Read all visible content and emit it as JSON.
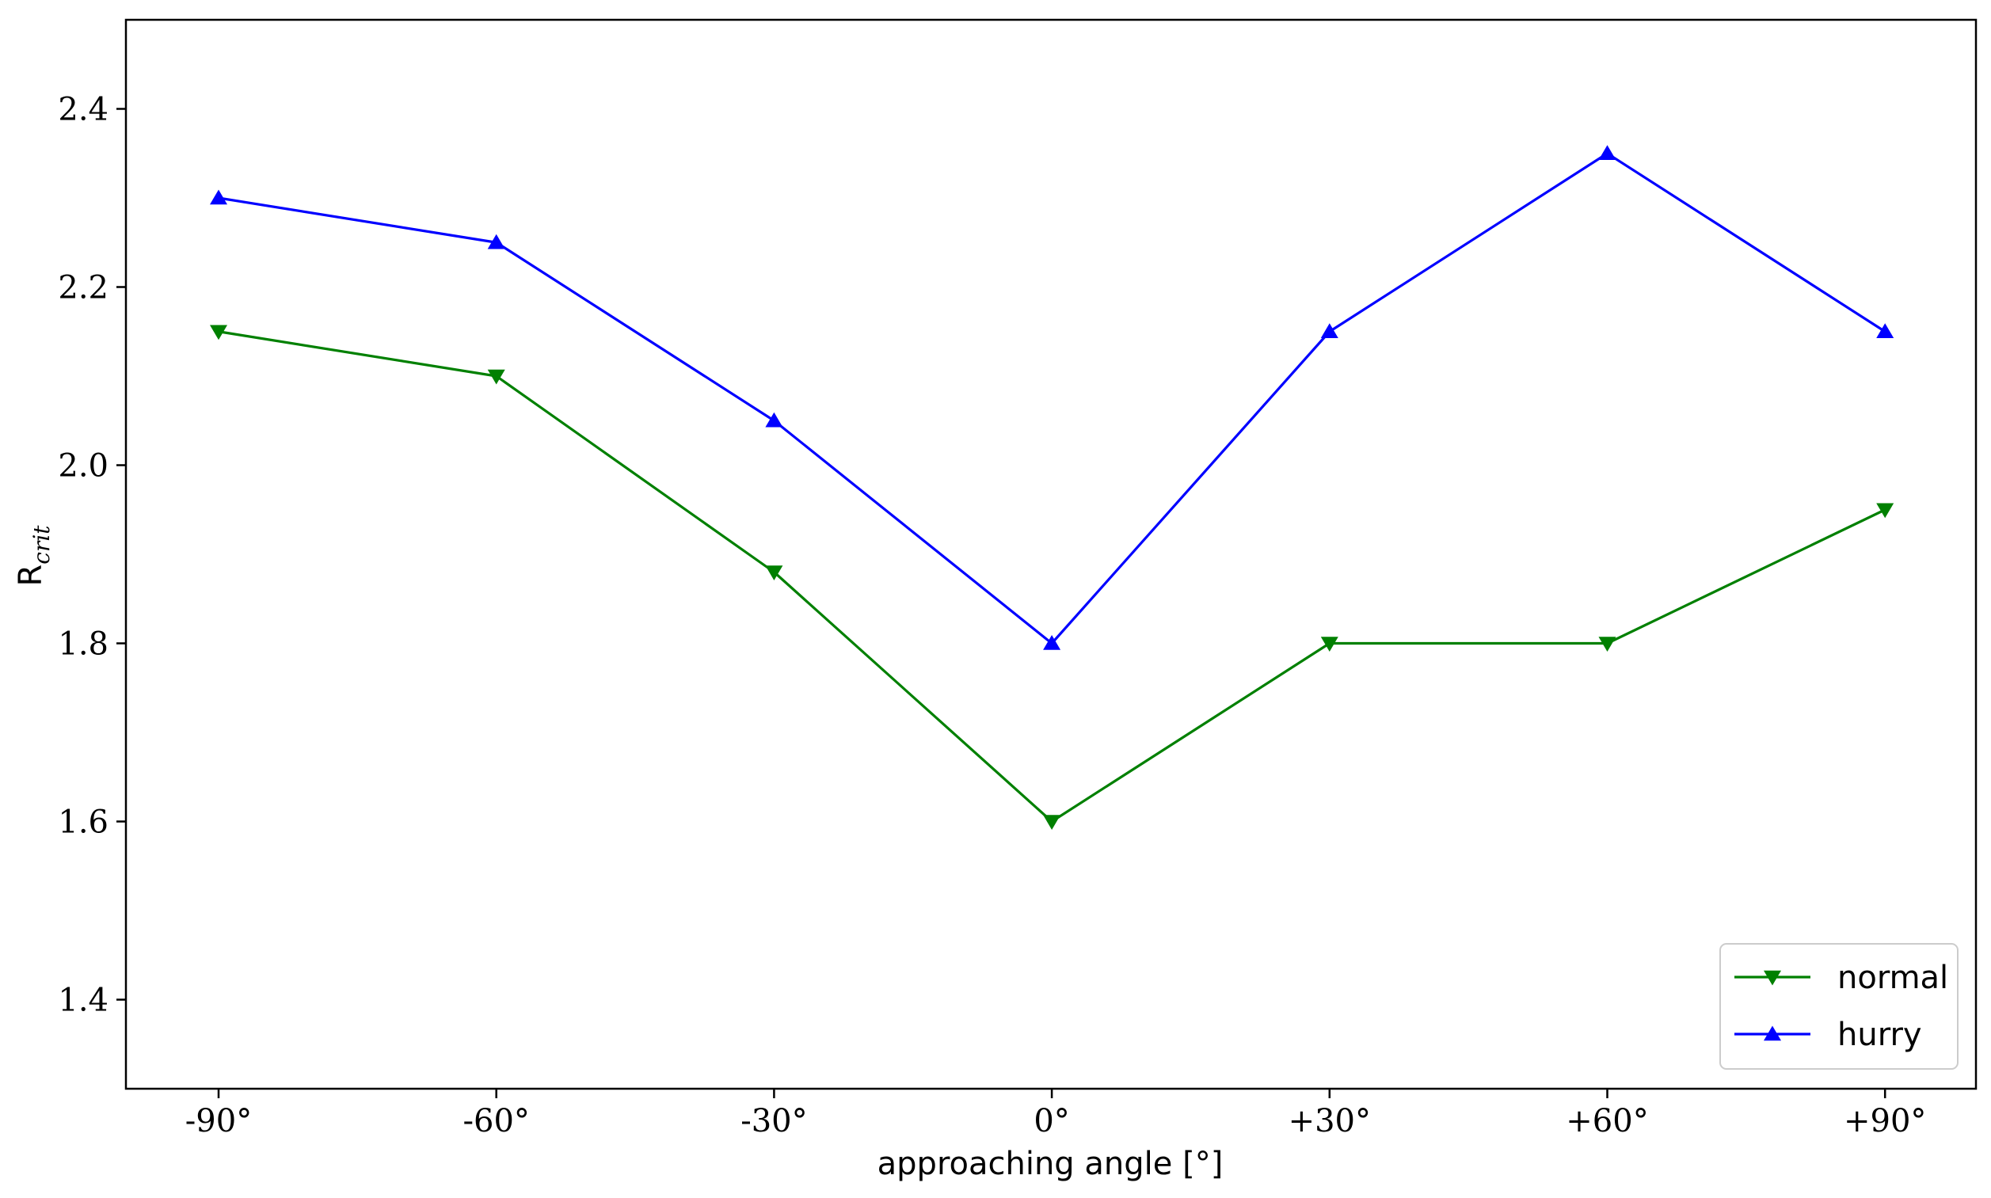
{
  "chart_data": {
    "type": "line",
    "title": "",
    "xlabel": "approaching angle [°]",
    "ylabel_main": "R",
    "ylabel_sub": "crit",
    "categories": [
      "-90°",
      "-60°",
      "-30°",
      "0°",
      "+30°",
      "+60°",
      "+90°"
    ],
    "ylim": [
      1.3,
      2.5
    ],
    "yticks": [
      1.4,
      1.6,
      1.8,
      2.0,
      2.2,
      2.4
    ],
    "ytick_labels": [
      "1.4",
      "1.6",
      "1.8",
      "2.0",
      "2.2",
      "2.4"
    ],
    "grid": false,
    "legend_position": "lower-right",
    "series": [
      {
        "name": "normal",
        "color": "#008000",
        "marker": "triangle-down",
        "values": [
          2.15,
          2.1,
          1.88,
          1.6,
          1.8,
          1.8,
          1.95
        ]
      },
      {
        "name": "hurry",
        "color": "#0000ff",
        "marker": "triangle-up",
        "values": [
          2.3,
          2.25,
          2.05,
          1.8,
          2.15,
          2.35,
          2.15
        ]
      }
    ]
  }
}
